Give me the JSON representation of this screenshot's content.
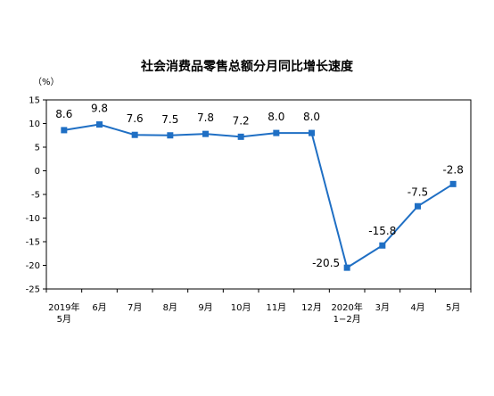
{
  "chart_data": {
    "type": "line",
    "title": "社会消费品零售总额分月同比增长速度",
    "unit": "（%）",
    "ylim": [
      -25,
      15
    ],
    "yticks": [
      15,
      10,
      5,
      0,
      -5,
      -10,
      -15,
      -20,
      -25
    ],
    "categories": [
      [
        "2019年",
        "5月"
      ],
      [
        "6月"
      ],
      [
        "7月"
      ],
      [
        "8月"
      ],
      [
        "9月"
      ],
      [
        "10月"
      ],
      [
        "11月"
      ],
      [
        "12月"
      ],
      [
        "2020年",
        "1−2月"
      ],
      [
        "3月"
      ],
      [
        "4月"
      ],
      [
        "5月"
      ]
    ],
    "values": [
      8.6,
      9.8,
      7.6,
      7.5,
      7.8,
      7.2,
      8.0,
      8.0,
      -20.5,
      -15.8,
      -7.5,
      -2.8
    ],
    "labels": [
      "8.6",
      "9.8",
      "7.6",
      "7.5",
      "7.8",
      "7.2",
      "8.0",
      "8.0",
      "-20.5",
      "-15.8",
      "-7.5",
      "-2.8"
    ],
    "series_color": "#1f6fc4",
    "grid": false
  }
}
